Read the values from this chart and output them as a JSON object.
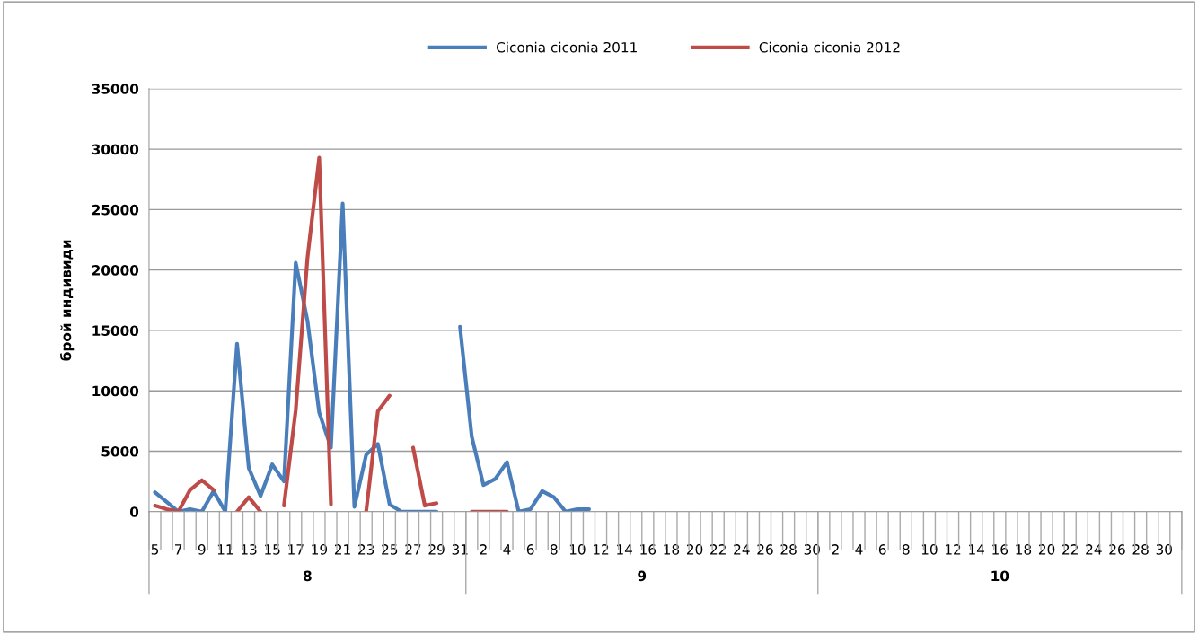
{
  "chart_data": {
    "type": "line",
    "ylabel": "брой индивиди",
    "categories": [
      "5",
      null,
      "7",
      null,
      "9",
      null,
      "11",
      null,
      "13",
      null,
      "15",
      null,
      "17",
      null,
      "19",
      null,
      "21",
      null,
      "23",
      null,
      "25",
      null,
      "27",
      null,
      "29",
      null,
      "31",
      null,
      "2",
      null,
      "4",
      null,
      "6",
      null,
      "8",
      null,
      "10",
      null,
      "12",
      null,
      "14",
      null,
      "16",
      null,
      "18",
      null,
      "20",
      null,
      "22",
      null,
      "24",
      null,
      "26",
      null,
      "28",
      null,
      "30",
      null,
      "2",
      null,
      "4",
      null,
      "6",
      null,
      "8",
      null,
      "10",
      null,
      "12",
      null,
      "14",
      null,
      "16",
      null,
      "18",
      null,
      "20",
      null,
      "22",
      null,
      "24",
      null,
      "26",
      null,
      "28",
      null,
      "30",
      null
    ],
    "series": [
      {
        "name": "Ciconia ciconia 2011",
        "color": "#4a7ebb",
        "values": [
          1600,
          800,
          0,
          200,
          0,
          1700,
          0,
          13900,
          3600,
          1300,
          3900,
          2500,
          20600,
          15800,
          8200,
          5300,
          25500,
          400,
          4700,
          5600,
          600,
          0,
          0,
          0,
          0,
          null,
          15300,
          6200,
          2200,
          2700,
          4100,
          0,
          200,
          1700,
          1200,
          0,
          200,
          200,
          null,
          null,
          null,
          null,
          null,
          null,
          null,
          null,
          null,
          null,
          null,
          null,
          null,
          null,
          null,
          null,
          null,
          null,
          null,
          null,
          null,
          null,
          null,
          null,
          null,
          null,
          null,
          null,
          null,
          null,
          null,
          null,
          null,
          null,
          null,
          null,
          null,
          null,
          null,
          null,
          null,
          null,
          null,
          null,
          null,
          null,
          null,
          null,
          null,
          null
        ]
      },
      {
        "name": "Ciconia ciconia 2012",
        "color": "#be4b48",
        "values": [
          500,
          200,
          0,
          1800,
          2600,
          1800,
          null,
          0,
          1200,
          0,
          null,
          500,
          8400,
          21000,
          29300,
          600,
          null,
          null,
          0,
          8300,
          9600,
          null,
          5300,
          500,
          700,
          null,
          null,
          0,
          0,
          0,
          0,
          null,
          null,
          null,
          null,
          null,
          null,
          null,
          null,
          null,
          null,
          null,
          null,
          null,
          null,
          null,
          null,
          null,
          null,
          null,
          null,
          null,
          null,
          null,
          null,
          null,
          null,
          null,
          null,
          null,
          null,
          null,
          null,
          null,
          null,
          null,
          null,
          null,
          null,
          null,
          null,
          null,
          null,
          null,
          null,
          null,
          null,
          null,
          null,
          null,
          null,
          null,
          null,
          null,
          null,
          null,
          null,
          null
        ]
      }
    ],
    "annotations": [
      "8",
      "9",
      "10"
    ],
    "ylim": [
      0,
      35000
    ],
    "yticks": [
      0,
      5000,
      10000,
      15000,
      20000,
      25000,
      30000,
      35000
    ],
    "grid": "y",
    "legend": "top",
    "marker": "none",
    "line_style": "solid"
  }
}
